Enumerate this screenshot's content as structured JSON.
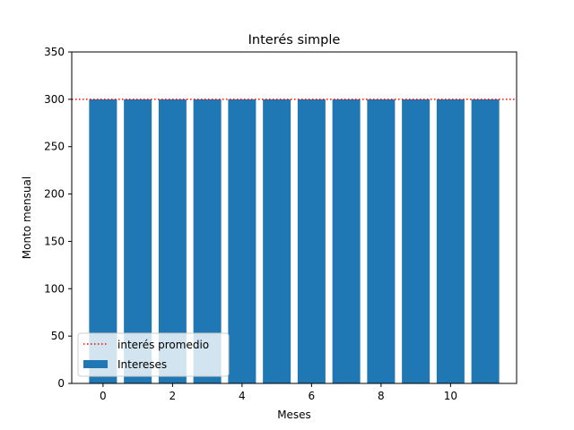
{
  "chart_data": {
    "type": "bar",
    "title": "Interés simple",
    "xlabel": "Meses",
    "ylabel": "Monto mensual",
    "x": [
      0,
      1,
      2,
      3,
      4,
      5,
      6,
      7,
      8,
      9,
      10,
      11
    ],
    "values": [
      300,
      300,
      300,
      300,
      300,
      300,
      300,
      300,
      300,
      300,
      300,
      300
    ],
    "series_name": "Intereses",
    "bar_color": "#1f77b4",
    "average_line": {
      "label": "interés promedio",
      "value": 300,
      "color": "#ff0000",
      "style": "dotted"
    },
    "xlim": [
      -0.9,
      11.9
    ],
    "ylim": [
      0,
      350
    ],
    "xticks": [
      0,
      2,
      4,
      6,
      8,
      10
    ],
    "yticks": [
      0,
      50,
      100,
      150,
      200,
      250,
      300,
      350
    ],
    "grid": false,
    "legend_position": "lower-left"
  }
}
